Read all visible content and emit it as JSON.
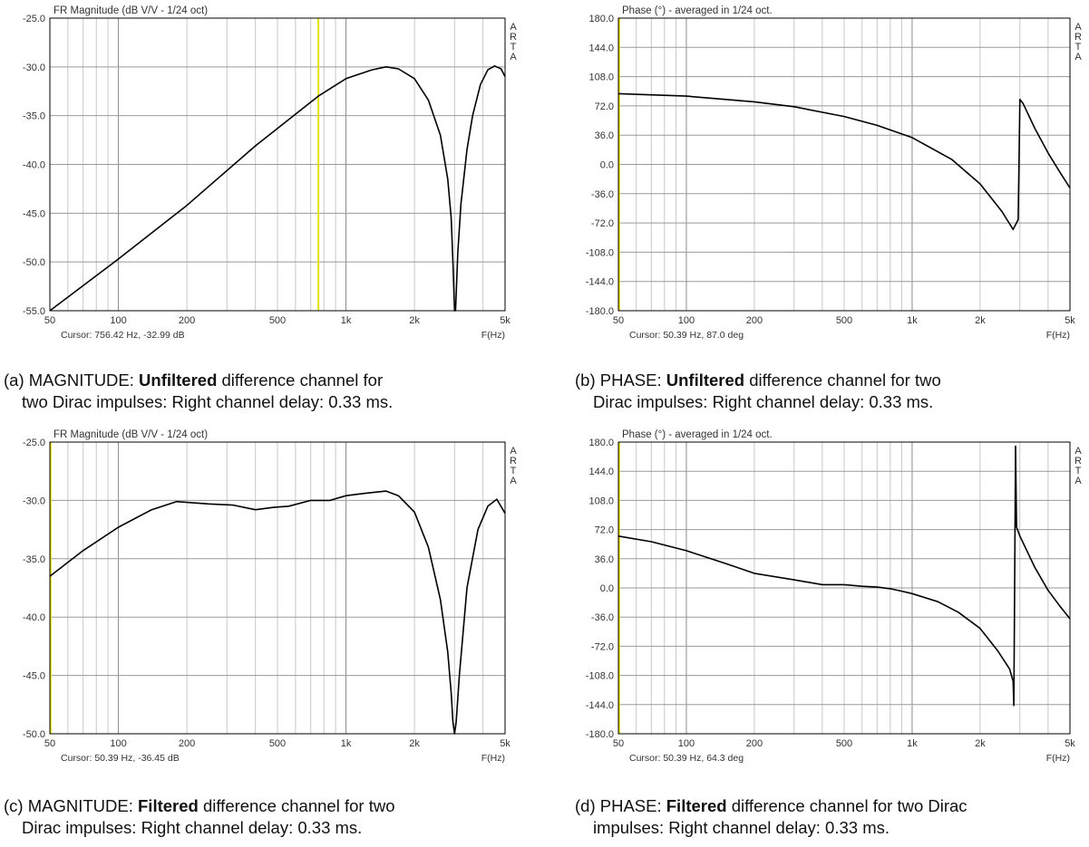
{
  "colors": {
    "background": "#ffffff",
    "grid": "#c8c8c8",
    "axis": "#000000",
    "curve": "#000000",
    "cursor": "#e8e000",
    "text": "#333333"
  },
  "chart_data": [
    {
      "type": "line",
      "title": "FR Magnitude (dB V/V - 1/24 oct)",
      "xlabel": "F(Hz)",
      "ylabel": "",
      "xscale": "log",
      "xlim": [
        50,
        5000
      ],
      "ylim": [
        -55,
        -25
      ],
      "yticks": [
        "-25.0",
        "-30.0",
        "-35.0",
        "-40.0",
        "-45.0",
        "-50.0",
        "-55.0"
      ],
      "xticks": [
        "50",
        "100",
        "200",
        "500",
        "1k",
        "2k",
        "5k"
      ],
      "watermark": [
        "A",
        "R",
        "T",
        "A"
      ],
      "cursor_text": "Cursor: 756.42 Hz, -32.99 dB",
      "cursor_x": 756.42,
      "series": [
        {
          "x": [
            50,
            100,
            200,
            400,
            756,
            1000,
            1300,
            1500,
            1700,
            2000,
            2300,
            2600,
            2800,
            2900,
            2950,
            3000,
            3030,
            3100,
            3200,
            3400,
            3600,
            3900,
            4200,
            4500,
            4800,
            5000
          ],
          "y": [
            -55.2,
            -49.7,
            -44.2,
            -38.1,
            -33.0,
            -31.2,
            -30.3,
            -30.0,
            -30.2,
            -31.2,
            -33.4,
            -37.0,
            -41.5,
            -45.5,
            -50.0,
            -55.0,
            -55.0,
            -49.0,
            -44.0,
            -38.5,
            -35.0,
            -31.8,
            -30.3,
            -29.9,
            -30.2,
            -31.0
          ]
        }
      ]
    },
    {
      "type": "line",
      "title": "Phase (°) - averaged in 1/24 oct.",
      "xlabel": "F(Hz)",
      "ylabel": "",
      "xscale": "log",
      "xlim": [
        50,
        5000
      ],
      "ylim": [
        -180,
        180
      ],
      "yticks": [
        "180.0",
        "144.0",
        "108.0",
        "72.0",
        "36.0",
        "0.0",
        "-36.0",
        "-72.0",
        "-108.0",
        "-144.0",
        "-180.0"
      ],
      "xticks": [
        "50",
        "100",
        "200",
        "500",
        "1k",
        "2k",
        "5k"
      ],
      "watermark": [
        "A",
        "R",
        "T",
        "A"
      ],
      "cursor_text": "Cursor: 50.39 Hz, 87.0 deg",
      "cursor_x": 50.39,
      "series": [
        {
          "x": [
            50,
            100,
            200,
            300,
            500,
            700,
            1000,
            1500,
            2000,
            2500,
            2800,
            2950,
            3000,
            3100,
            3500,
            4000,
            4500,
            5000
          ],
          "y": [
            87,
            84,
            77,
            71,
            59,
            48,
            33,
            6,
            -24,
            -58,
            -80,
            -68,
            80,
            75,
            44,
            14,
            -9,
            -29
          ]
        }
      ]
    },
    {
      "type": "line",
      "title": "FR Magnitude (dB V/V - 1/24 oct)",
      "xlabel": "F(Hz)",
      "ylabel": "",
      "xscale": "log",
      "xlim": [
        50,
        5000
      ],
      "ylim": [
        -50,
        -25
      ],
      "yticks": [
        "-25.0",
        "-30.0",
        "-35.0",
        "-40.0",
        "-45.0",
        "-50.0"
      ],
      "xticks": [
        "50",
        "100",
        "200",
        "500",
        "1k",
        "2k",
        "5k"
      ],
      "watermark": [
        "A",
        "R",
        "T",
        "A"
      ],
      "cursor_text": "Cursor: 50.39 Hz, -36.45 dB",
      "cursor_x": 50.39,
      "series": [
        {
          "x": [
            50,
            70,
            100,
            140,
            180,
            250,
            320,
            400,
            480,
            560,
            700,
            850,
            1000,
            1200,
            1500,
            1700,
            2000,
            2300,
            2600,
            2800,
            2900,
            2950,
            3000,
            3050,
            3150,
            3400,
            3800,
            4200,
            4600,
            5000
          ],
          "y": [
            -36.5,
            -34.3,
            -32.3,
            -30.8,
            -30.1,
            -30.3,
            -30.4,
            -30.8,
            -30.6,
            -30.5,
            -30.0,
            -30.0,
            -29.6,
            -29.4,
            -29.2,
            -29.6,
            -31.0,
            -34.0,
            -38.5,
            -43.0,
            -46.5,
            -49.0,
            -50.0,
            -49.0,
            -45.0,
            -37.5,
            -32.5,
            -30.5,
            -29.9,
            -31.1
          ]
        }
      ]
    },
    {
      "type": "line",
      "title": "Phase (°) - averaged in 1/24 oct.",
      "xlabel": "F(Hz)",
      "ylabel": "",
      "xscale": "log",
      "xlim": [
        50,
        5000
      ],
      "ylim": [
        -180,
        180
      ],
      "yticks": [
        "180.0",
        "144.0",
        "108.0",
        "72.0",
        "36.0",
        "0.0",
        "-36.0",
        "-72.0",
        "-108.0",
        "-144.0",
        "-180.0"
      ],
      "xticks": [
        "50",
        "100",
        "200",
        "500",
        "1k",
        "2k",
        "5k"
      ],
      "watermark": [
        "A",
        "R",
        "T",
        "A"
      ],
      "cursor_text": "Cursor: 50.39 Hz, 64.3 deg",
      "cursor_x": 50.39,
      "series": [
        {
          "x": [
            50,
            70,
            100,
            150,
            200,
            300,
            400,
            500,
            600,
            700,
            800,
            900,
            1000,
            1300,
            1600,
            2000,
            2400,
            2700,
            2800,
            2820,
            2840,
            2870,
            2900,
            3000,
            3500,
            4000,
            4500,
            5000
          ],
          "y": [
            64,
            57,
            46,
            30,
            18,
            10,
            4,
            4,
            2,
            1,
            -1,
            -4,
            -7,
            -17,
            -30,
            -50,
            -78,
            -100,
            -115,
            -145,
            -30,
            175,
            75,
            64,
            25,
            -3,
            -22,
            -38
          ]
        }
      ]
    }
  ],
  "captions": [
    {
      "line1_prefix": "(a) MAGNITUDE: ",
      "bold": "Unfiltered",
      "line1_suffix": " difference channel for",
      "line2": "two Dirac impulses: Right channel delay: 0.33 ms."
    },
    {
      "line1_prefix": "(b) PHASE: ",
      "bold": "Unfiltered",
      "line1_suffix": " difference channel for two",
      "line2": "Dirac impulses: Right channel delay: 0.33 ms."
    },
    {
      "line1_prefix": "(c) MAGNITUDE: ",
      "bold": "Filtered",
      "line1_suffix": " difference channel for two",
      "line2": "Dirac impulses: Right channel delay: 0.33 ms."
    },
    {
      "line1_prefix": "(d) PHASE: ",
      "bold": "Filtered",
      "line1_suffix": " difference channel for two Dirac",
      "line2": "impulses: Right channel delay: 0.33 ms."
    }
  ]
}
